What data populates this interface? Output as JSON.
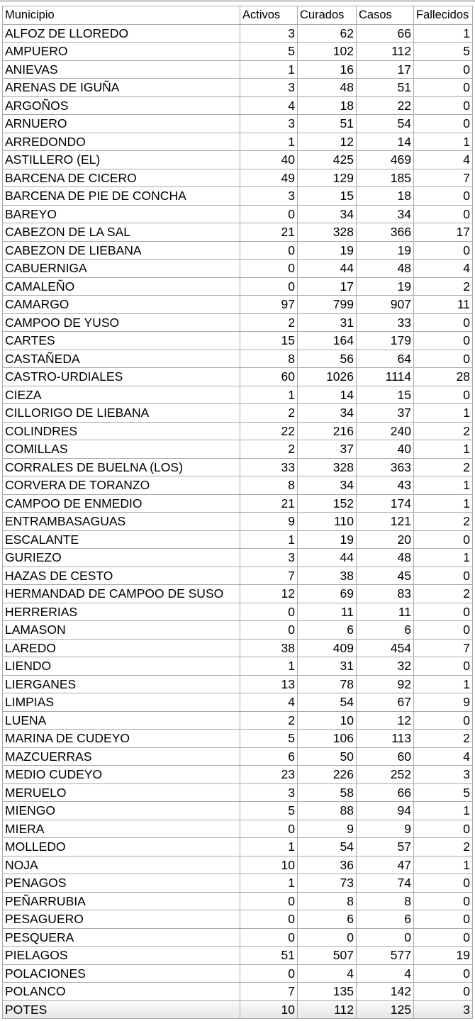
{
  "columns": [
    "Municipio",
    "Activos",
    "Curados",
    "Casos",
    "Fallecidos"
  ],
  "rows": [
    [
      "ALFOZ DE LLOREDO",
      3,
      62,
      66,
      1
    ],
    [
      "AMPUERO",
      5,
      102,
      112,
      5
    ],
    [
      "ANIEVAS",
      1,
      16,
      17,
      0
    ],
    [
      "ARENAS DE IGUÑA",
      3,
      48,
      51,
      0
    ],
    [
      "ARGOÑOS",
      4,
      18,
      22,
      0
    ],
    [
      "ARNUERO",
      3,
      51,
      54,
      0
    ],
    [
      "ARREDONDO",
      1,
      12,
      14,
      1
    ],
    [
      "ASTILLERO (EL)",
      40,
      425,
      469,
      4
    ],
    [
      "BARCENA DE CICERO",
      49,
      129,
      185,
      7
    ],
    [
      "BARCENA DE PIE DE CONCHA",
      3,
      15,
      18,
      0
    ],
    [
      "BAREYO",
      0,
      34,
      34,
      0
    ],
    [
      "CABEZON DE LA SAL",
      21,
      328,
      366,
      17
    ],
    [
      "CABEZON DE LIEBANA",
      0,
      19,
      19,
      0
    ],
    [
      "CABUERNIGA",
      0,
      44,
      48,
      4
    ],
    [
      "CAMALEÑO",
      0,
      17,
      19,
      2
    ],
    [
      "CAMARGO",
      97,
      799,
      907,
      11
    ],
    [
      "CAMPOO DE YUSO",
      2,
      31,
      33,
      0
    ],
    [
      "CARTES",
      15,
      164,
      179,
      0
    ],
    [
      "CASTAÑEDA",
      8,
      56,
      64,
      0
    ],
    [
      "CASTRO-URDIALES",
      60,
      1026,
      1114,
      28
    ],
    [
      "CIEZA",
      1,
      14,
      15,
      0
    ],
    [
      "CILLORIGO DE LIEBANA",
      2,
      34,
      37,
      1
    ],
    [
      "COLINDRES",
      22,
      216,
      240,
      2
    ],
    [
      "COMILLAS",
      2,
      37,
      40,
      1
    ],
    [
      "CORRALES DE BUELNA (LOS)",
      33,
      328,
      363,
      2
    ],
    [
      "CORVERA DE TORANZO",
      8,
      34,
      43,
      1
    ],
    [
      "CAMPOO DE ENMEDIO",
      21,
      152,
      174,
      1
    ],
    [
      "ENTRAMBASAGUAS",
      9,
      110,
      121,
      2
    ],
    [
      "ESCALANTE",
      1,
      19,
      20,
      0
    ],
    [
      "GURIEZO",
      3,
      44,
      48,
      1
    ],
    [
      "HAZAS DE CESTO",
      7,
      38,
      45,
      0
    ],
    [
      "HERMANDAD DE CAMPOO DE SUSO",
      12,
      69,
      83,
      2
    ],
    [
      "HERRERIAS",
      0,
      11,
      11,
      0
    ],
    [
      "LAMASON",
      0,
      6,
      6,
      0
    ],
    [
      "LAREDO",
      38,
      409,
      454,
      7
    ],
    [
      "LIENDO",
      1,
      31,
      32,
      0
    ],
    [
      "LIERGANES",
      13,
      78,
      92,
      1
    ],
    [
      "LIMPIAS",
      4,
      54,
      67,
      9
    ],
    [
      "LUENA",
      2,
      10,
      12,
      0
    ],
    [
      "MARINA DE CUDEYO",
      5,
      106,
      113,
      2
    ],
    [
      "MAZCUERRAS",
      6,
      50,
      60,
      4
    ],
    [
      "MEDIO CUDEYO",
      23,
      226,
      252,
      3
    ],
    [
      "MERUELO",
      3,
      58,
      66,
      5
    ],
    [
      "MIENGO",
      5,
      88,
      94,
      1
    ],
    [
      "MIERA",
      0,
      9,
      9,
      0
    ],
    [
      "MOLLEDO",
      1,
      54,
      57,
      2
    ],
    [
      "NOJA",
      10,
      36,
      47,
      1
    ],
    [
      "PENAGOS",
      1,
      73,
      74,
      0
    ],
    [
      "PEÑARRUBIA",
      0,
      8,
      8,
      0
    ],
    [
      "PESAGUERO",
      0,
      6,
      6,
      0
    ],
    [
      "PESQUERA",
      0,
      0,
      0,
      0
    ],
    [
      "PIELAGOS",
      51,
      507,
      577,
      19
    ],
    [
      "POLACIONES",
      0,
      4,
      4,
      0
    ],
    [
      "POLANCO",
      7,
      135,
      142,
      0
    ],
    [
      "POTES",
      10,
      112,
      125,
      3
    ]
  ]
}
